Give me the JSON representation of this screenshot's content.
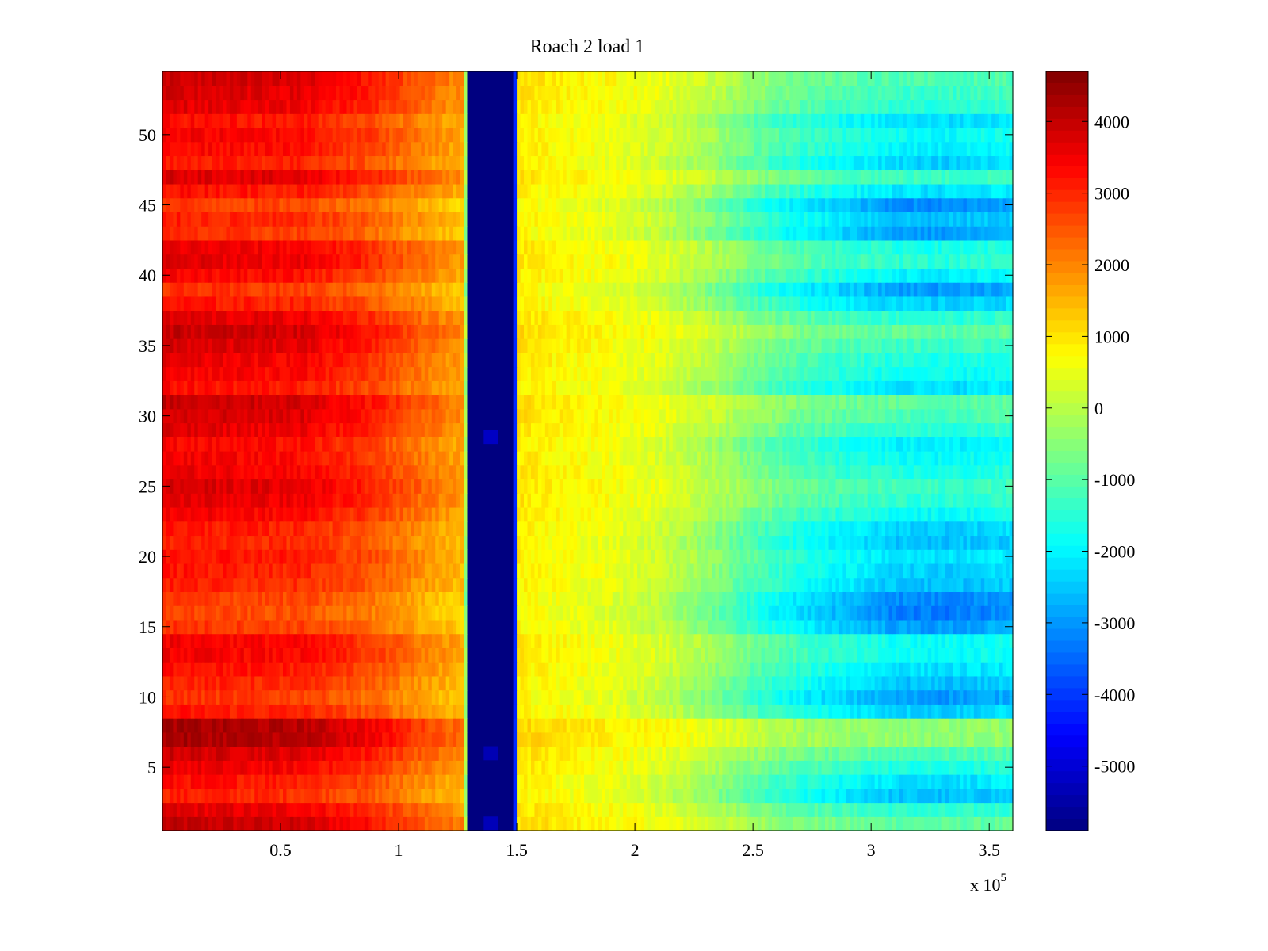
{
  "chart_data": {
    "type": "heatmap",
    "title": "Roach 2 load 1",
    "xlabel": "",
    "ylabel": "",
    "x_multiplier_label": "x 10",
    "x_multiplier_exponent": "5",
    "xlim": [
      0,
      3.6
    ],
    "ylim": [
      0.5,
      54.5
    ],
    "clim": [
      -5900,
      4700
    ],
    "x_ticks": [
      {
        "value": 0.5,
        "label": "0.5"
      },
      {
        "value": 1,
        "label": "1"
      },
      {
        "value": 1.5,
        "label": "1.5"
      },
      {
        "value": 2,
        "label": "2"
      },
      {
        "value": 2.5,
        "label": "2.5"
      },
      {
        "value": 3,
        "label": "3"
      },
      {
        "value": 3.5,
        "label": "3.5"
      }
    ],
    "y_ticks": [
      {
        "value": 5,
        "label": "5"
      },
      {
        "value": 10,
        "label": "10"
      },
      {
        "value": 15,
        "label": "15"
      },
      {
        "value": 20,
        "label": "20"
      },
      {
        "value": 25,
        "label": "25"
      },
      {
        "value": 30,
        "label": "30"
      },
      {
        "value": 35,
        "label": "35"
      },
      {
        "value": 40,
        "label": "40"
      },
      {
        "value": 45,
        "label": "45"
      },
      {
        "value": 50,
        "label": "50"
      }
    ],
    "colorbar_ticks": [
      {
        "value": 4000,
        "label": "4000"
      },
      {
        "value": 3000,
        "label": "3000"
      },
      {
        "value": 2000,
        "label": "2000"
      },
      {
        "value": 1000,
        "label": "1000"
      },
      {
        "value": 0,
        "label": "0"
      },
      {
        "value": -1000,
        "label": "-1000"
      },
      {
        "value": -2000,
        "label": "-2000"
      },
      {
        "value": -3000,
        "label": "-3000"
      },
      {
        "value": -4000,
        "label": "-4000"
      },
      {
        "value": -5000,
        "label": "-5000"
      }
    ],
    "colormap": "jet",
    "rows": 54,
    "profile_x": [
      0.0,
      0.3,
      0.6,
      0.9,
      1.1,
      1.28,
      1.29,
      1.49,
      1.5,
      1.7,
      1.9,
      2.1,
      2.3,
      2.5,
      2.7,
      2.9,
      3.1,
      3.3,
      3.6
    ],
    "profile_base": [
      3000,
      2900,
      2800,
      2300,
      1700,
      1300,
      -5900,
      -5900,
      800,
      600,
      450,
      100,
      -500,
      -1300,
      -1900,
      -2300,
      -2700,
      -2800,
      -2600
    ],
    "profile_slope": [
      500,
      500,
      500,
      450,
      400,
      350,
      0,
      0,
      150,
      150,
      150,
      250,
      400,
      550,
      650,
      750,
      900,
      900,
      850
    ],
    "row_offsets": [
      2.0,
      1.4,
      0.2,
      0.6,
      1.2,
      1.8,
      2.6,
      2.6,
      0.4,
      -0.2,
      0.2,
      0.6,
      1.0,
      1.0,
      -0.2,
      -0.6,
      -0.4,
      0.2,
      0.4,
      0.6,
      0.2,
      0.4,
      1.0,
      1.4,
      1.6,
      1.2,
      1.0,
      0.8,
      1.4,
      1.8,
      2.0,
      0.6,
      1.0,
      1.2,
      1.6,
      2.0,
      1.4,
      0.4,
      -0.2,
      0.8,
      1.4,
      1.2,
      -0.2,
      0.2,
      -0.4,
      0.6,
      1.6,
      0.4,
      0.8,
      1.0,
      0.6,
      1.4,
      1.6,
      1.8
    ],
    "dark_spots": [
      {
        "x": 1.39,
        "y": 28.5,
        "value": -5200
      },
      {
        "x": 1.39,
        "y": 6.0,
        "value": -5350
      },
      {
        "x": 1.39,
        "y": 1.0,
        "value": -5300
      }
    ]
  }
}
